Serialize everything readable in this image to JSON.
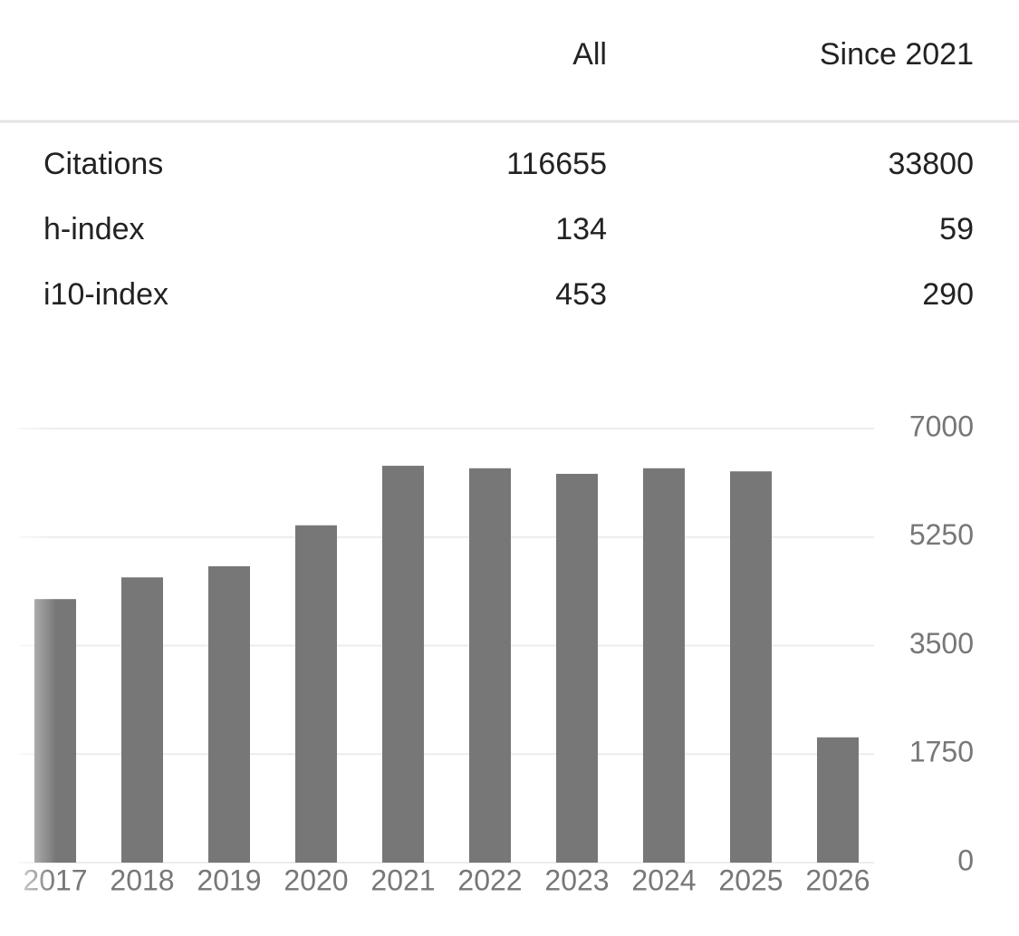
{
  "table": {
    "header": [
      "All",
      "Since 2021"
    ],
    "rows": [
      [
        "Citations",
        116655,
        33800
      ],
      [
        "h-index",
        134,
        59
      ],
      [
        "i10-index",
        453,
        290
      ]
    ]
  },
  "chart_data": {
    "type": "bar",
    "categories": [
      "2017",
      "2018",
      "2019",
      "2020",
      "2021",
      "2022",
      "2023",
      "2024",
      "2025",
      "2026"
    ],
    "values": [
      4250,
      4600,
      4780,
      5440,
      6400,
      6360,
      6270,
      6360,
      6310,
      2020
    ],
    "color": "#777777",
    "ylim": [
      0,
      7000
    ],
    "yticks": [
      0,
      1750,
      3500,
      5250,
      7000
    ],
    "grid": true
  }
}
